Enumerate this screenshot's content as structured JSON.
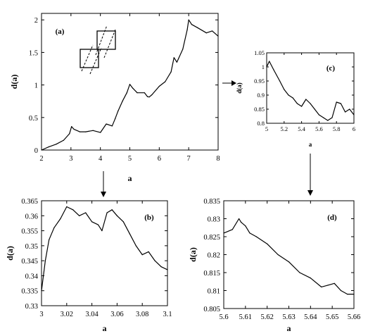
{
  "chart_data": [
    {
      "id": "a",
      "type": "line",
      "annotation": "(a)",
      "xlabel": "a",
      "ylabel": "d(a)",
      "xlim": [
        2,
        8
      ],
      "ylim": [
        0,
        2.1
      ],
      "xticks": [
        "2",
        "3",
        "4",
        "5",
        "6",
        "7",
        "8"
      ],
      "yticks": [
        "0",
        "0.5",
        "1",
        "1.5",
        "2"
      ],
      "x": [
        2.0,
        2.25,
        2.5,
        2.75,
        2.95,
        3.02,
        3.1,
        3.3,
        3.5,
        3.75,
        4.0,
        4.2,
        4.4,
        4.5,
        4.6,
        4.75,
        4.9,
        5.0,
        5.1,
        5.25,
        5.5,
        5.6,
        5.66,
        5.75,
        6.0,
        6.2,
        6.4,
        6.5,
        6.6,
        6.8,
        6.95,
        7.0,
        7.1,
        7.3,
        7.6,
        7.8,
        8.0
      ],
      "y": [
        0.0,
        0.05,
        0.09,
        0.15,
        0.25,
        0.36,
        0.32,
        0.28,
        0.28,
        0.3,
        0.27,
        0.4,
        0.37,
        0.48,
        0.6,
        0.75,
        0.88,
        1.01,
        0.95,
        0.88,
        0.88,
        0.82,
        0.815,
        0.85,
        0.98,
        1.05,
        1.2,
        1.42,
        1.35,
        1.55,
        1.85,
        2.0,
        1.93,
        1.88,
        1.8,
        1.83,
        1.75
      ]
    },
    {
      "id": "b",
      "type": "line",
      "annotation": "(b)",
      "xlabel": "a",
      "ylabel": "d(a)",
      "xlim": [
        3,
        3.1
      ],
      "ylim": [
        0.33,
        0.365
      ],
      "xticks": [
        "3",
        "3.02",
        "3.04",
        "3.06",
        "3.08",
        "3.1"
      ],
      "yticks": [
        "0.33",
        "0.335",
        "0.34",
        "0.345",
        "0.35",
        "0.355",
        "0.36",
        "0.365"
      ],
      "x": [
        3.0,
        3.003,
        3.006,
        3.01,
        3.015,
        3.02,
        3.025,
        3.03,
        3.035,
        3.04,
        3.045,
        3.048,
        3.052,
        3.056,
        3.06,
        3.065,
        3.07,
        3.075,
        3.08,
        3.085,
        3.09,
        3.095,
        3.1
      ],
      "y": [
        0.335,
        0.345,
        0.352,
        0.356,
        0.359,
        0.363,
        0.362,
        0.36,
        0.361,
        0.358,
        0.357,
        0.355,
        0.361,
        0.362,
        0.36,
        0.358,
        0.354,
        0.35,
        0.347,
        0.348,
        0.345,
        0.343,
        0.342
      ]
    },
    {
      "id": "c",
      "type": "line",
      "annotation": "(c)",
      "xlabel": "a",
      "ylabel": "d(a)",
      "xlim": [
        5,
        6
      ],
      "ylim": [
        0.8,
        1.05
      ],
      "xticks": [
        "5",
        "5.2",
        "5.4",
        "5.6",
        "5.8",
        "6"
      ],
      "yticks": [
        "0.8",
        "0.85",
        "0.9",
        "0.95",
        "1",
        "1.05"
      ],
      "x": [
        5.0,
        5.03,
        5.08,
        5.15,
        5.2,
        5.25,
        5.3,
        5.35,
        5.4,
        5.45,
        5.5,
        5.55,
        5.6,
        5.65,
        5.7,
        5.75,
        5.8,
        5.85,
        5.9,
        5.95,
        6.0
      ],
      "y": [
        1.0,
        1.02,
        0.99,
        0.95,
        0.92,
        0.9,
        0.89,
        0.87,
        0.86,
        0.885,
        0.87,
        0.85,
        0.83,
        0.82,
        0.81,
        0.82,
        0.875,
        0.87,
        0.84,
        0.85,
        0.83
      ]
    },
    {
      "id": "d",
      "type": "line",
      "annotation": "(d)",
      "xlabel": "a",
      "ylabel": "d(a)",
      "xlim": [
        5.6,
        5.66
      ],
      "ylim": [
        0.805,
        0.835
      ],
      "xticks": [
        "5.6",
        "5.61",
        "5.62",
        "5.63",
        "5.64",
        "5.65",
        "5.66"
      ],
      "yticks": [
        "0.805",
        "0.81",
        "0.815",
        "0.82",
        "0.825",
        "0.83",
        "0.835"
      ],
      "x": [
        5.6,
        5.604,
        5.607,
        5.608,
        5.61,
        5.612,
        5.615,
        5.62,
        5.625,
        5.63,
        5.635,
        5.64,
        5.645,
        5.648,
        5.651,
        5.654,
        5.657,
        5.66
      ],
      "y": [
        0.826,
        0.827,
        0.83,
        0.829,
        0.828,
        0.826,
        0.825,
        0.823,
        0.82,
        0.818,
        0.815,
        0.8135,
        0.811,
        0.8115,
        0.812,
        0.81,
        0.809,
        0.809
      ]
    }
  ]
}
